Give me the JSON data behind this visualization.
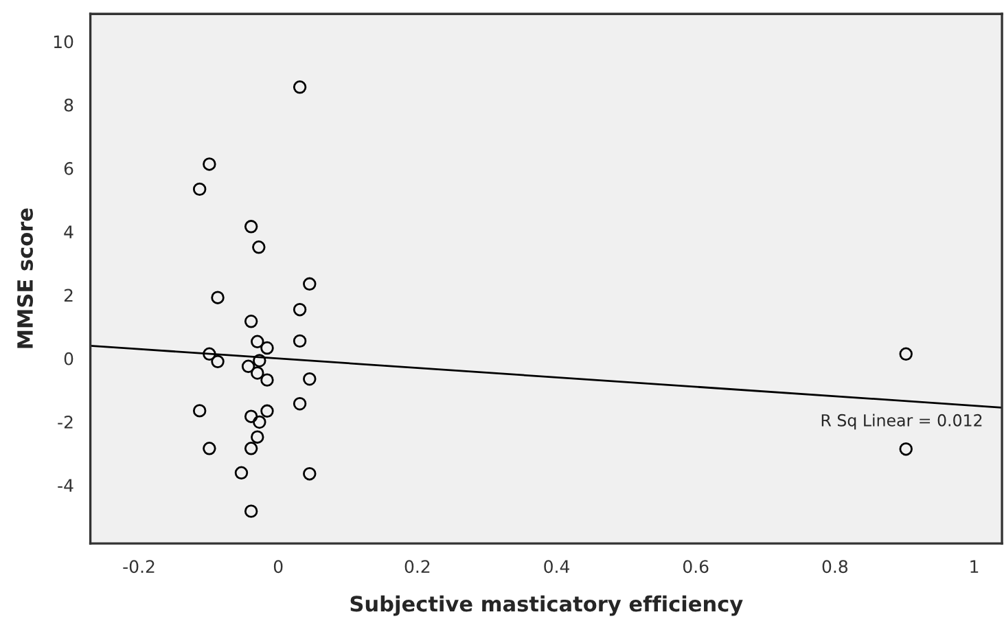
{
  "chart_data": {
    "type": "scatter",
    "xlabel": "Subjective masticatory efficiency",
    "ylabel": "MMSE score",
    "xlim": [
      -0.27,
      1.04
    ],
    "ylim": [
      -5.84,
      10.87
    ],
    "xticks": [
      -0.2,
      0,
      0.2,
      0.4,
      0.6,
      0.8,
      1
    ],
    "yticks": [
      -4,
      -2,
      0,
      2,
      4,
      6,
      8,
      10
    ],
    "grid": false,
    "series": [
      {
        "marker": "circle",
        "color": "#000000",
        "x": [
          0.031,
          -0.099,
          -0.113,
          -0.039,
          -0.028,
          0.045,
          0.031,
          -0.087,
          -0.039,
          0.031,
          -0.03,
          -0.016,
          -0.099,
          -0.087,
          -0.043,
          -0.027,
          -0.03,
          -0.016,
          0.045,
          0.031,
          -0.113,
          -0.016,
          -0.039,
          -0.027,
          -0.03,
          -0.099,
          -0.039,
          -0.053,
          0.045,
          -0.039,
          0.902,
          0.902
        ],
        "values": [
          8.56,
          6.13,
          5.34,
          4.16,
          3.51,
          2.35,
          1.54,
          1.92,
          1.17,
          0.55,
          0.53,
          0.33,
          0.14,
          -0.1,
          -0.25,
          -0.07,
          -0.46,
          -0.68,
          -0.65,
          -1.43,
          -1.65,
          -1.66,
          -1.83,
          -2.01,
          -2.48,
          -2.84,
          -2.84,
          -3.61,
          -3.64,
          -4.82,
          0.14,
          -2.86
        ]
      },
      {
        "type": "line",
        "color": "#000000",
        "x": [
          -0.27,
          1.04
        ],
        "values": [
          0.4,
          -1.55
        ]
      }
    ],
    "annotations": [
      "R Sq Linear = 0.012"
    ]
  }
}
